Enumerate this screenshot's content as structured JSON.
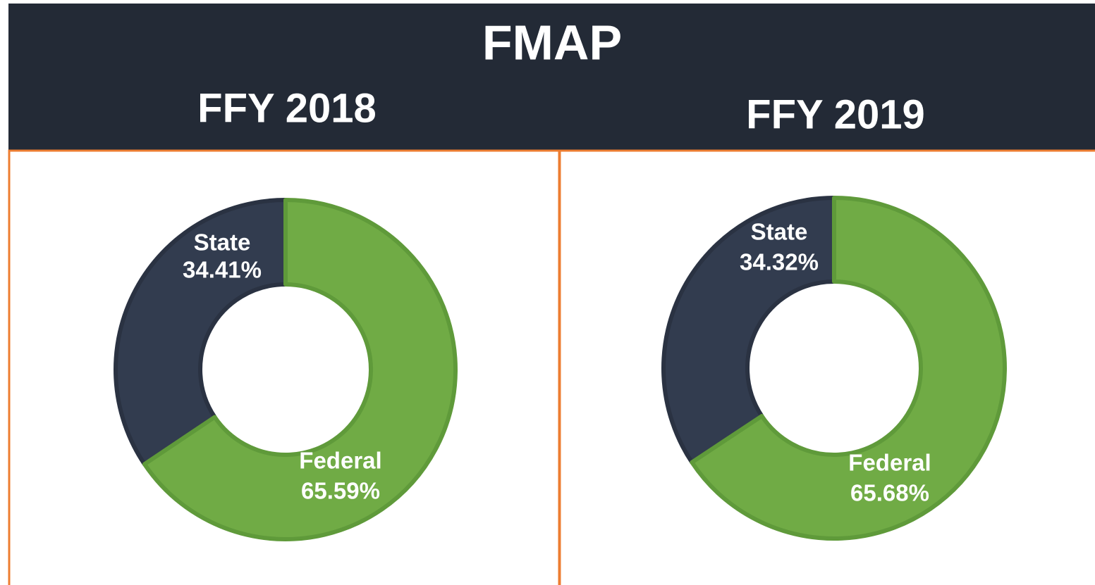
{
  "title": "FMAP",
  "chart_data": [
    {
      "type": "pie",
      "donut": true,
      "title": "FFY 2018",
      "categories": [
        "State",
        "Federal"
      ],
      "values": [
        34.41,
        65.59
      ],
      "value_labels": [
        "34.41%",
        "65.59%"
      ],
      "colors": [
        "#323c4f",
        "#70ab45"
      ]
    },
    {
      "type": "pie",
      "donut": true,
      "title": "FFY 2019",
      "categories": [
        "State",
        "Federal"
      ],
      "values": [
        34.32,
        65.68
      ],
      "value_labels": [
        "34.32%",
        "65.68%"
      ],
      "colors": [
        "#323c4f",
        "#70ab45"
      ]
    }
  ]
}
